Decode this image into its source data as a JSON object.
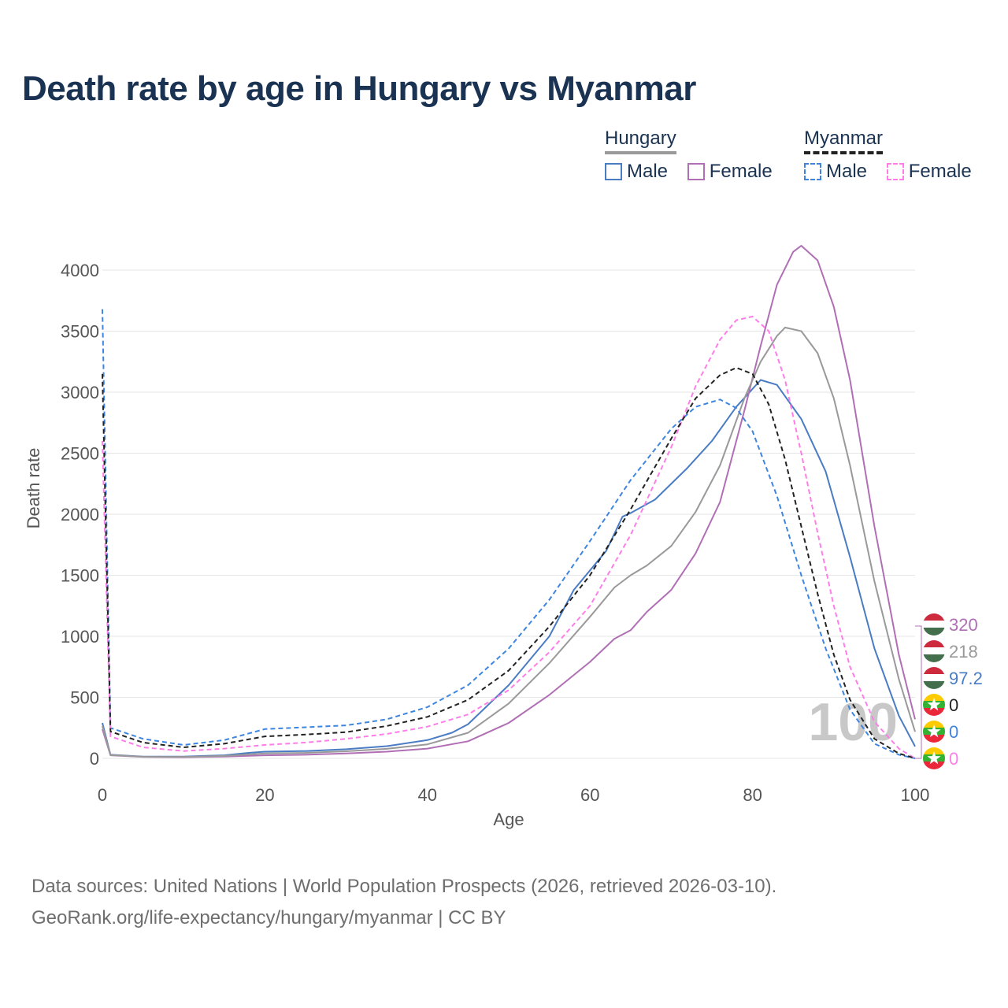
{
  "title": "Death rate by age in Hungary vs Myanmar",
  "legend": {
    "groups": [
      {
        "name": "Hungary",
        "style": "solid",
        "items": [
          {
            "label": "Male",
            "color": "#4a7cc4"
          },
          {
            "label": "Female",
            "color": "#b06fb4"
          }
        ]
      },
      {
        "name": "Myanmar",
        "style": "dashed",
        "items": [
          {
            "label": "Male",
            "color": "#3d85e0"
          },
          {
            "label": "Female",
            "color": "#ff7de8"
          }
        ]
      }
    ]
  },
  "footer": {
    "source": "Data sources: United Nations | World Population Prospects (2026, retrieved 2026-03-10).",
    "link": "GeoRank.org/life-expectancy/hungary/myanmar | CC BY"
  },
  "chart_data": {
    "type": "line",
    "title": "Death rate by age in Hungary vs Myanmar",
    "xlabel": "Age",
    "ylabel": "Death rate",
    "xlim": [
      0,
      100
    ],
    "ylim": [
      -150,
      4350
    ],
    "xticks": [
      0,
      20,
      40,
      60,
      80,
      100
    ],
    "yticks": [
      0,
      500,
      1000,
      1500,
      2000,
      2500,
      3000,
      3500,
      4000
    ],
    "grid": true,
    "age_marker": "100",
    "series": [
      {
        "name": "Hungary Male",
        "country": "Hungary",
        "sex": "Male",
        "style": "solid",
        "color": "#4a7cc4",
        "end_label": "97.2",
        "points": [
          [
            0,
            290
          ],
          [
            1,
            30
          ],
          [
            5,
            15
          ],
          [
            10,
            15
          ],
          [
            15,
            25
          ],
          [
            18,
            45
          ],
          [
            20,
            55
          ],
          [
            25,
            60
          ],
          [
            30,
            75
          ],
          [
            35,
            100
          ],
          [
            40,
            150
          ],
          [
            43,
            210
          ],
          [
            45,
            280
          ],
          [
            50,
            600
          ],
          [
            55,
            1000
          ],
          [
            58,
            1380
          ],
          [
            62,
            1700
          ],
          [
            64,
            1980
          ],
          [
            65,
            2010
          ],
          [
            68,
            2120
          ],
          [
            72,
            2380
          ],
          [
            75,
            2600
          ],
          [
            78,
            2880
          ],
          [
            81,
            3100
          ],
          [
            83,
            3060
          ],
          [
            86,
            2780
          ],
          [
            89,
            2350
          ],
          [
            92,
            1650
          ],
          [
            95,
            900
          ],
          [
            98,
            350
          ],
          [
            100,
            97.2
          ]
        ]
      },
      {
        "name": "Hungary Female",
        "country": "Hungary",
        "sex": "Female",
        "style": "solid",
        "color": "#b06fb4",
        "end_label": "320",
        "points": [
          [
            0,
            240
          ],
          [
            1,
            25
          ],
          [
            5,
            12
          ],
          [
            10,
            10
          ],
          [
            15,
            15
          ],
          [
            20,
            25
          ],
          [
            25,
            30
          ],
          [
            30,
            40
          ],
          [
            35,
            55
          ],
          [
            40,
            80
          ],
          [
            45,
            140
          ],
          [
            50,
            290
          ],
          [
            55,
            520
          ],
          [
            60,
            790
          ],
          [
            63,
            980
          ],
          [
            65,
            1050
          ],
          [
            67,
            1200
          ],
          [
            70,
            1380
          ],
          [
            73,
            1680
          ],
          [
            76,
            2100
          ],
          [
            79,
            2850
          ],
          [
            81,
            3380
          ],
          [
            83,
            3880
          ],
          [
            85,
            4150
          ],
          [
            86,
            4200
          ],
          [
            88,
            4080
          ],
          [
            90,
            3700
          ],
          [
            92,
            3100
          ],
          [
            95,
            1900
          ],
          [
            98,
            850
          ],
          [
            100,
            320
          ]
        ]
      },
      {
        "name": "Hungary Both",
        "country": "Hungary",
        "sex": "Both",
        "style": "solid",
        "color": "#999999",
        "end_label": "218",
        "points": [
          [
            0,
            265
          ],
          [
            1,
            28
          ],
          [
            5,
            13
          ],
          [
            10,
            12
          ],
          [
            15,
            20
          ],
          [
            20,
            40
          ],
          [
            25,
            45
          ],
          [
            30,
            58
          ],
          [
            35,
            78
          ],
          [
            40,
            115
          ],
          [
            45,
            210
          ],
          [
            50,
            450
          ],
          [
            55,
            780
          ],
          [
            60,
            1160
          ],
          [
            63,
            1400
          ],
          [
            65,
            1500
          ],
          [
            67,
            1580
          ],
          [
            70,
            1740
          ],
          [
            73,
            2020
          ],
          [
            76,
            2400
          ],
          [
            79,
            2950
          ],
          [
            81,
            3250
          ],
          [
            83,
            3460
          ],
          [
            84,
            3530
          ],
          [
            86,
            3500
          ],
          [
            88,
            3320
          ],
          [
            90,
            2950
          ],
          [
            92,
            2400
          ],
          [
            95,
            1450
          ],
          [
            98,
            650
          ],
          [
            100,
            218
          ]
        ]
      },
      {
        "name": "Myanmar Male",
        "country": "Myanmar",
        "sex": "Male",
        "style": "dashed",
        "color": "#3d85e0",
        "end_label": "0",
        "points": [
          [
            0,
            3680
          ],
          [
            1,
            250
          ],
          [
            5,
            160
          ],
          [
            10,
            110
          ],
          [
            15,
            150
          ],
          [
            20,
            240
          ],
          [
            25,
            255
          ],
          [
            30,
            270
          ],
          [
            35,
            320
          ],
          [
            40,
            420
          ],
          [
            45,
            600
          ],
          [
            50,
            900
          ],
          [
            55,
            1300
          ],
          [
            60,
            1780
          ],
          [
            65,
            2280
          ],
          [
            70,
            2700
          ],
          [
            73,
            2880
          ],
          [
            76,
            2940
          ],
          [
            78,
            2870
          ],
          [
            80,
            2680
          ],
          [
            83,
            2150
          ],
          [
            86,
            1500
          ],
          [
            89,
            900
          ],
          [
            92,
            400
          ],
          [
            95,
            120
          ],
          [
            98,
            30
          ],
          [
            100,
            0
          ]
        ]
      },
      {
        "name": "Myanmar Female",
        "country": "Myanmar",
        "sex": "Female",
        "style": "dashed",
        "color": "#ff7de8",
        "end_label": "0",
        "points": [
          [
            0,
            2600
          ],
          [
            1,
            180
          ],
          [
            5,
            90
          ],
          [
            10,
            60
          ],
          [
            15,
            80
          ],
          [
            20,
            110
          ],
          [
            25,
            130
          ],
          [
            30,
            160
          ],
          [
            35,
            200
          ],
          [
            40,
            260
          ],
          [
            45,
            360
          ],
          [
            50,
            560
          ],
          [
            55,
            870
          ],
          [
            60,
            1250
          ],
          [
            65,
            1830
          ],
          [
            70,
            2550
          ],
          [
            73,
            3050
          ],
          [
            76,
            3430
          ],
          [
            78,
            3590
          ],
          [
            80,
            3620
          ],
          [
            82,
            3500
          ],
          [
            84,
            3100
          ],
          [
            86,
            2500
          ],
          [
            88,
            1850
          ],
          [
            90,
            1250
          ],
          [
            92,
            750
          ],
          [
            95,
            300
          ],
          [
            98,
            80
          ],
          [
            100,
            0
          ]
        ]
      },
      {
        "name": "Myanmar Both",
        "country": "Myanmar",
        "sex": "Both",
        "style": "dashed",
        "color": "#222222",
        "end_label": "0",
        "points": [
          [
            0,
            3150
          ],
          [
            1,
            220
          ],
          [
            5,
            130
          ],
          [
            10,
            90
          ],
          [
            15,
            120
          ],
          [
            20,
            180
          ],
          [
            25,
            195
          ],
          [
            30,
            215
          ],
          [
            35,
            265
          ],
          [
            40,
            340
          ],
          [
            45,
            480
          ],
          [
            50,
            720
          ],
          [
            55,
            1080
          ],
          [
            60,
            1500
          ],
          [
            65,
            2040
          ],
          [
            70,
            2620
          ],
          [
            73,
            2950
          ],
          [
            76,
            3140
          ],
          [
            78,
            3200
          ],
          [
            80,
            3150
          ],
          [
            82,
            2900
          ],
          [
            84,
            2450
          ],
          [
            86,
            1900
          ],
          [
            88,
            1350
          ],
          [
            90,
            850
          ],
          [
            92,
            480
          ],
          [
            95,
            160
          ],
          [
            98,
            40
          ],
          [
            100,
            0
          ]
        ]
      }
    ],
    "end_labels_order": [
      "Hungary Female",
      "Hungary Both",
      "Hungary Male",
      "Myanmar Both",
      "Myanmar Male",
      "Myanmar Female"
    ]
  }
}
